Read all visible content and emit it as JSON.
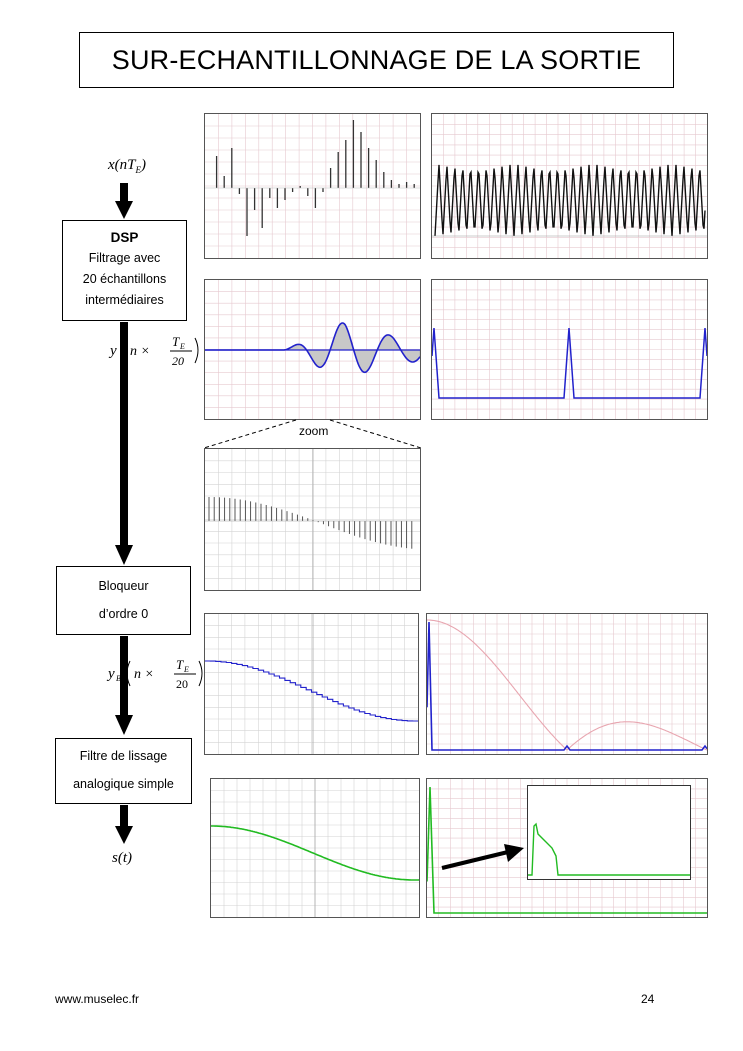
{
  "title": "SUR-ECHANTILLONNAGE DE LA SORTIE",
  "blocks": {
    "dsp": {
      "head": "DSP",
      "line1": "Filtrage avec",
      "line2": "20 échantillons",
      "line3": "intermédiaires"
    },
    "bloqueur": {
      "line1": "Bloqueur",
      "line2": "d’ordre 0"
    },
    "filtre": {
      "line1": "Filtre de lissage",
      "line2": "analogique simple"
    }
  },
  "signals": {
    "x_in": "x(nT",
    "x_sub": "E",
    "y_prefix": "y",
    "yb_prefix": "y",
    "yb_sub": "B",
    "n_times": "n ×",
    "num": "T",
    "num_sub": "E",
    "den": "20",
    "s_out": "s(t)"
  },
  "zoom_label": "zoom",
  "footer": {
    "url": "www.muselec.fr",
    "page": "24"
  },
  "colors": {
    "blue": "#2222cc",
    "green": "#22bb22",
    "pink": "#e8a6b0",
    "grid_pink": "#e6c9cf",
    "grid_gray": "#d4d4d4"
  }
}
